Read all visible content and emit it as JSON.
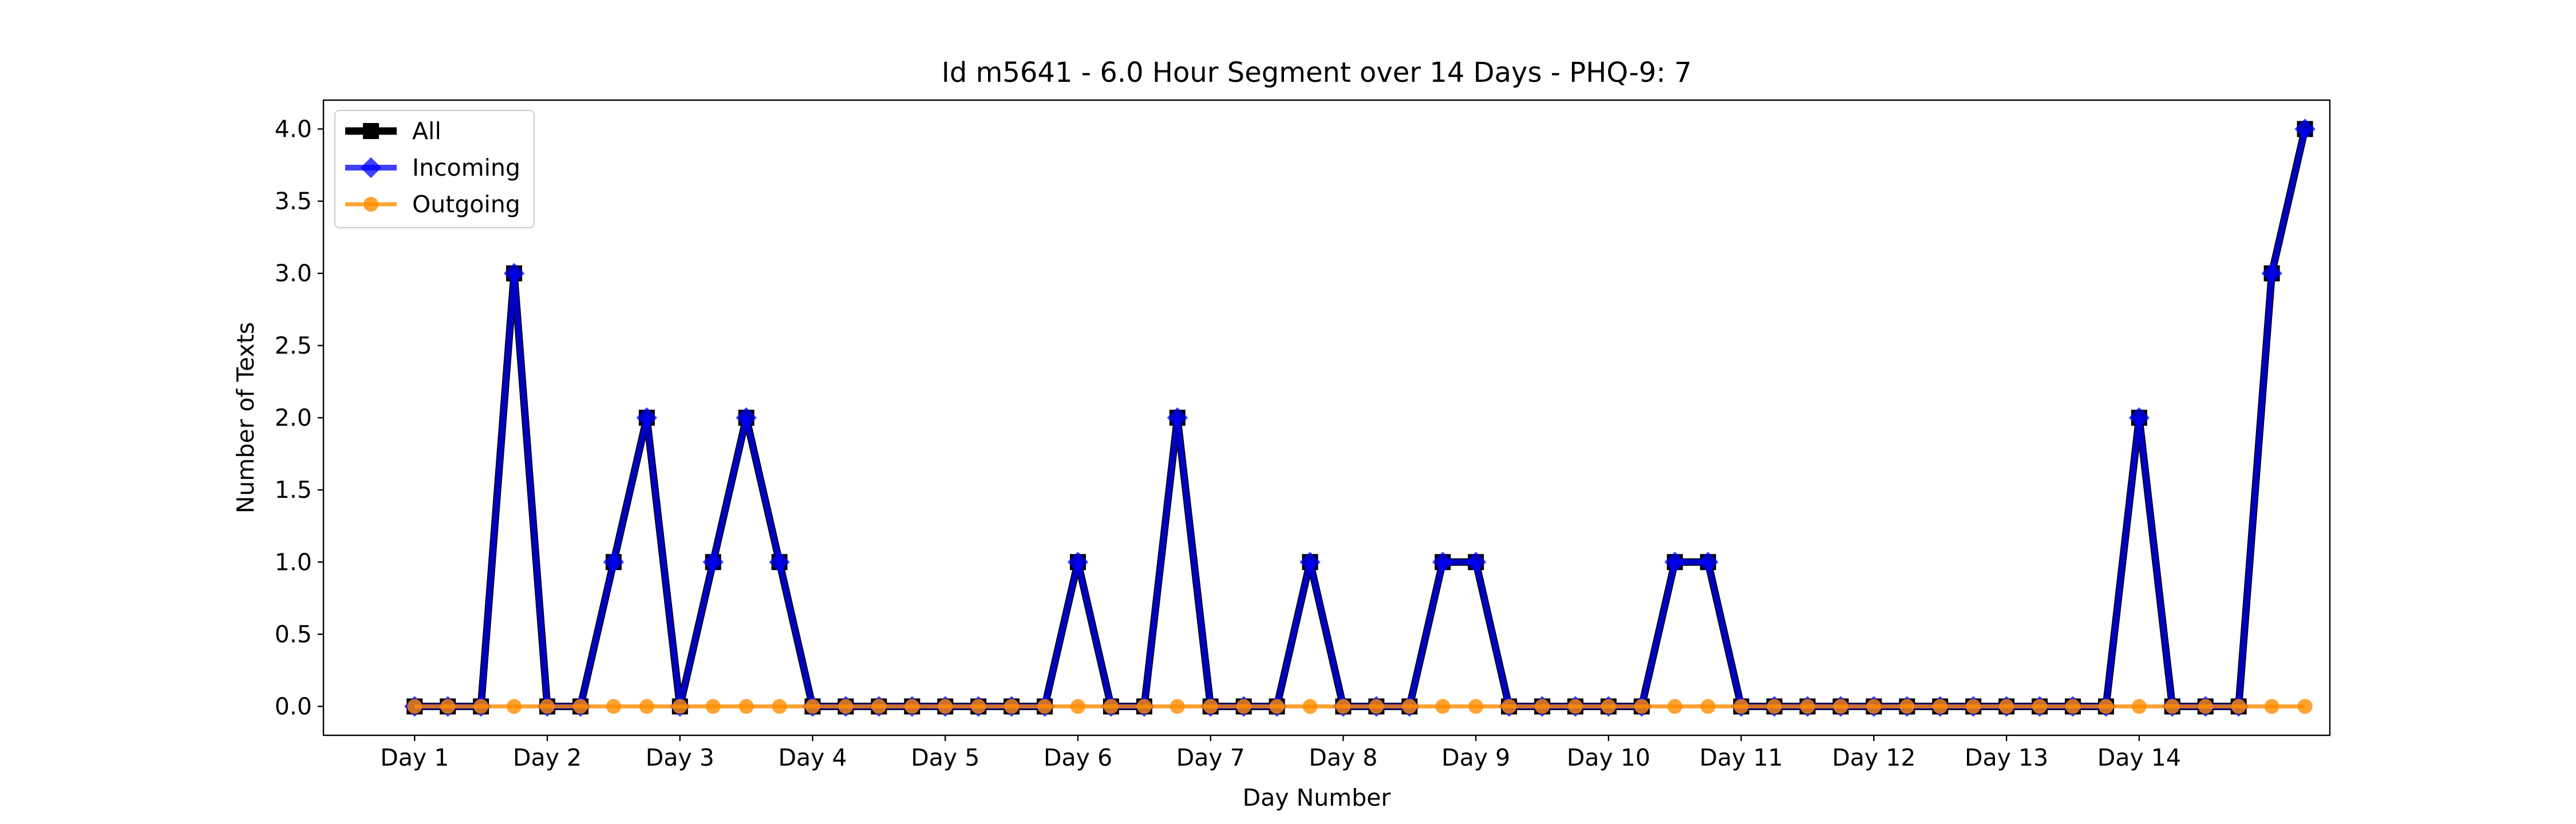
{
  "chart_data": {
    "type": "line",
    "title": "Id m5641 - 6.0 Hour Segment over 14 Days - PHQ-9: 7",
    "xlabel": "Day Number",
    "ylabel": "Number of Texts",
    "x_tick_labels": [
      "Day 1",
      "Day 2",
      "Day 3",
      "Day 4",
      "Day 5",
      "Day 6",
      "Day 7",
      "Day 8",
      "Day 9",
      "Day 10",
      "Day 11",
      "Day 12",
      "Day 13",
      "Day 14"
    ],
    "y_tick_labels": [
      "0.0",
      "0.5",
      "1.0",
      "1.5",
      "2.0",
      "2.5",
      "3.0",
      "3.5",
      "4.0"
    ],
    "ylim": [
      -0.2,
      4.2
    ],
    "xlim": [
      -2.75,
      57.75
    ],
    "grid": false,
    "legend_position": "upper-left",
    "series": [
      {
        "name": "All",
        "color": "#000000",
        "marker": "square",
        "values": [
          0,
          0,
          0,
          3,
          0,
          0,
          1,
          2,
          0,
          1,
          2,
          1,
          0,
          0,
          0,
          0,
          0,
          0,
          0,
          0,
          1,
          0,
          0,
          2,
          0,
          0,
          0,
          1,
          0,
          0,
          0,
          1,
          1,
          0,
          0,
          0,
          0,
          0,
          1,
          1,
          0,
          0,
          0,
          0,
          0,
          0,
          0,
          0,
          0,
          0,
          0,
          0,
          2,
          0,
          0,
          0,
          3,
          4
        ]
      },
      {
        "name": "Incoming",
        "color": "#0000ff",
        "marker": "diamond",
        "values": [
          0,
          0,
          0,
          3,
          0,
          0,
          1,
          2,
          0,
          1,
          2,
          1,
          0,
          0,
          0,
          0,
          0,
          0,
          0,
          0,
          1,
          0,
          0,
          2,
          0,
          0,
          0,
          1,
          0,
          0,
          0,
          1,
          1,
          0,
          0,
          0,
          0,
          0,
          1,
          1,
          0,
          0,
          0,
          0,
          0,
          0,
          0,
          0,
          0,
          0,
          0,
          0,
          2,
          0,
          0,
          0,
          3,
          4
        ]
      },
      {
        "name": "Outgoing",
        "color": "#ff8c00",
        "marker": "circle",
        "values": [
          0,
          0,
          0,
          0,
          0,
          0,
          0,
          0,
          0,
          0,
          0,
          0,
          0,
          0,
          0,
          0,
          0,
          0,
          0,
          0,
          0,
          0,
          0,
          0,
          0,
          0,
          0,
          0,
          0,
          0,
          0,
          0,
          0,
          0,
          0,
          0,
          0,
          0,
          0,
          0,
          0,
          0,
          0,
          0,
          0,
          0,
          0,
          0,
          0,
          0,
          0,
          0,
          0,
          0,
          0,
          0,
          0,
          0
        ]
      }
    ]
  }
}
